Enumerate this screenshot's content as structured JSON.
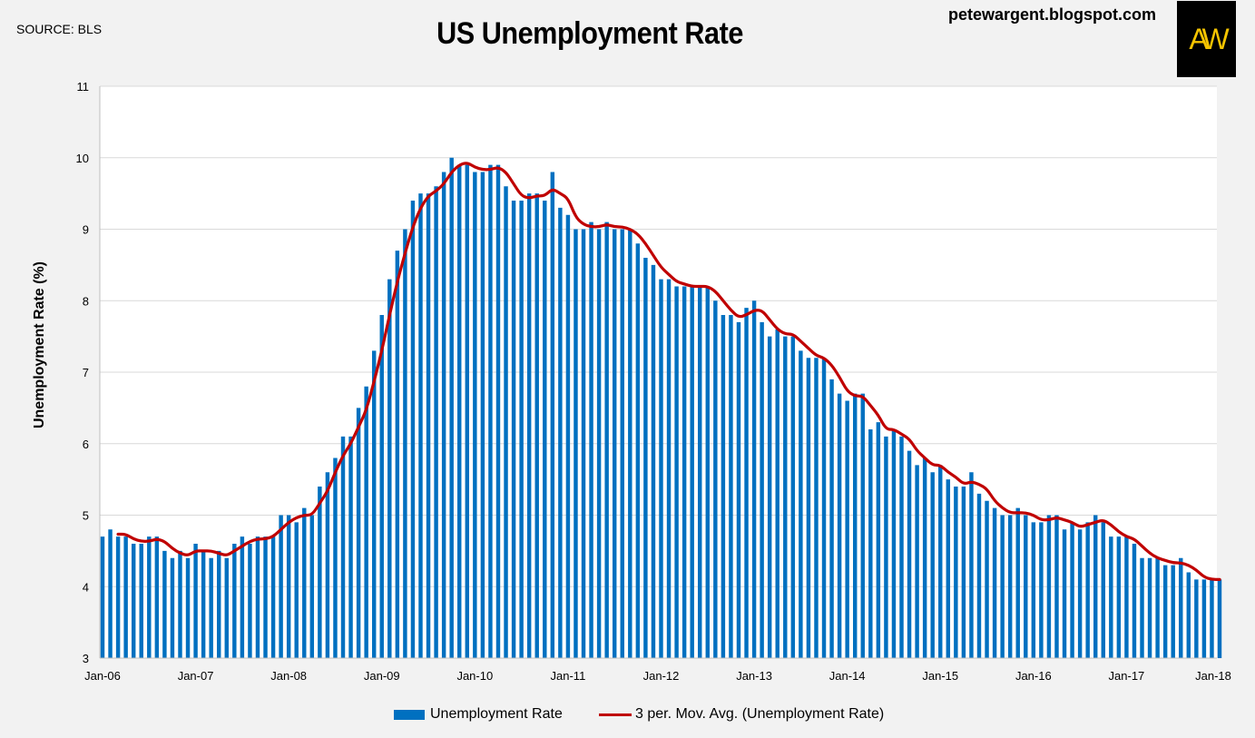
{
  "header": {
    "source": "SOURCE: BLS",
    "blog": "petewargent.blogspot.com",
    "logo_text": "AW"
  },
  "chart_data": {
    "type": "bar",
    "title": "US Unemployment Rate",
    "ylabel": "Unemployment Rate (%)",
    "xlabel": "",
    "ylim": [
      3,
      11
    ],
    "yticks": [
      3,
      4,
      5,
      6,
      7,
      8,
      9,
      10,
      11
    ],
    "x_start": "Jan-06",
    "x_end": "Jan-18",
    "xtick_labels": [
      "Jan-06",
      "Jan-07",
      "Jan-08",
      "Jan-09",
      "Jan-10",
      "Jan-11",
      "Jan-12",
      "Jan-13",
      "Jan-14",
      "Jan-15",
      "Jan-16",
      "Jan-17",
      "Jan-18"
    ],
    "grid": true,
    "legend_position": "bottom",
    "series": [
      {
        "name": "Unemployment Rate",
        "type": "bar",
        "color": "#0070c0",
        "values": [
          4.7,
          4.8,
          4.7,
          4.7,
          4.6,
          4.6,
          4.7,
          4.7,
          4.5,
          4.4,
          4.5,
          4.4,
          4.6,
          4.5,
          4.4,
          4.5,
          4.4,
          4.6,
          4.7,
          4.6,
          4.7,
          4.7,
          4.7,
          5.0,
          5.0,
          4.9,
          5.1,
          5.0,
          5.4,
          5.6,
          5.8,
          6.1,
          6.1,
          6.5,
          6.8,
          7.3,
          7.8,
          8.3,
          8.7,
          9.0,
          9.4,
          9.5,
          9.5,
          9.6,
          9.8,
          10.0,
          9.9,
          9.9,
          9.8,
          9.8,
          9.9,
          9.9,
          9.6,
          9.4,
          9.4,
          9.5,
          9.5,
          9.4,
          9.8,
          9.3,
          9.2,
          9.0,
          9.0,
          9.1,
          9.0,
          9.1,
          9.0,
          9.0,
          9.0,
          8.8,
          8.6,
          8.5,
          8.3,
          8.3,
          8.2,
          8.2,
          8.2,
          8.2,
          8.2,
          8.0,
          7.8,
          7.8,
          7.7,
          7.9,
          8.0,
          7.7,
          7.5,
          7.6,
          7.5,
          7.5,
          7.3,
          7.2,
          7.2,
          7.2,
          6.9,
          6.7,
          6.6,
          6.7,
          6.7,
          6.2,
          6.3,
          6.1,
          6.2,
          6.1,
          5.9,
          5.7,
          5.8,
          5.6,
          5.7,
          5.5,
          5.4,
          5.4,
          5.6,
          5.3,
          5.2,
          5.1,
          5.0,
          5.0,
          5.1,
          5.0,
          4.9,
          4.9,
          5.0,
          5.0,
          4.8,
          4.9,
          4.8,
          4.9,
          5.0,
          4.9,
          4.7,
          4.7,
          4.7,
          4.6,
          4.4,
          4.4,
          4.4,
          4.3,
          4.3,
          4.4,
          4.2,
          4.1,
          4.1,
          4.1,
          4.1
        ]
      },
      {
        "name": "3 per. Mov. Avg. (Unemployment Rate)",
        "type": "line",
        "color": "#c00000"
      }
    ]
  }
}
